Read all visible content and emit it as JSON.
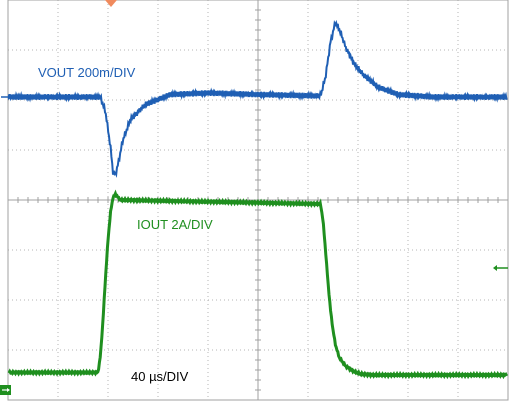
{
  "chart_data": {
    "type": "line",
    "title": "",
    "xlabel": "",
    "ylabel": "",
    "grid": true,
    "grid_divisions": {
      "x": 10,
      "y": 8
    },
    "x_unit": "µs",
    "time_per_div_us": 40,
    "x_range_us": [
      0,
      400
    ],
    "timebase_label": "40 µs/DIV",
    "series": [
      {
        "name": "VOUT 200m/DIV",
        "color": "#1f5fb4",
        "scale_per_div": "200m",
        "ref_level_div": 0.0,
        "x": [
          0,
          74,
          78,
          82,
          84,
          86,
          88,
          92,
          98,
          110,
          130,
          160,
          200,
          250,
          254,
          258,
          262,
          264,
          266,
          270,
          276,
          284,
          296,
          312,
          340,
          400
        ],
        "y": [
          0,
          0,
          -0.3,
          -1.0,
          -1.5,
          -1.55,
          -1.35,
          -0.85,
          -0.45,
          -0.15,
          0.05,
          0.08,
          0.05,
          0.02,
          0.4,
          1.1,
          1.5,
          1.4,
          1.3,
          1.0,
          0.7,
          0.45,
          0.2,
          0.05,
          0,
          0
        ]
      },
      {
        "name": "IOUT 2A/DIV",
        "color": "#1f8f1f",
        "scale_per_div": "2A",
        "ref_level_div": -3.8,
        "x": [
          0,
          72,
          74,
          76,
          78,
          80,
          82,
          84,
          86,
          88,
          90,
          92,
          250,
          252,
          254,
          256,
          258,
          260,
          262,
          265,
          270,
          276,
          282,
          292,
          310,
          400
        ],
        "y": [
          -3.45,
          -3.45,
          -3.1,
          -2.4,
          -1.55,
          -0.8,
          -0.25,
          0.05,
          0.12,
          0.05,
          0.0,
          0.0,
          -0.08,
          -0.4,
          -1.0,
          -1.65,
          -2.2,
          -2.6,
          -2.9,
          -3.15,
          -3.32,
          -3.42,
          -3.48,
          -3.5,
          -3.5,
          -3.5
        ]
      }
    ]
  },
  "markers": {
    "trigger_color": "#f08a5d",
    "left_marker_color": "#1f8f1f"
  }
}
